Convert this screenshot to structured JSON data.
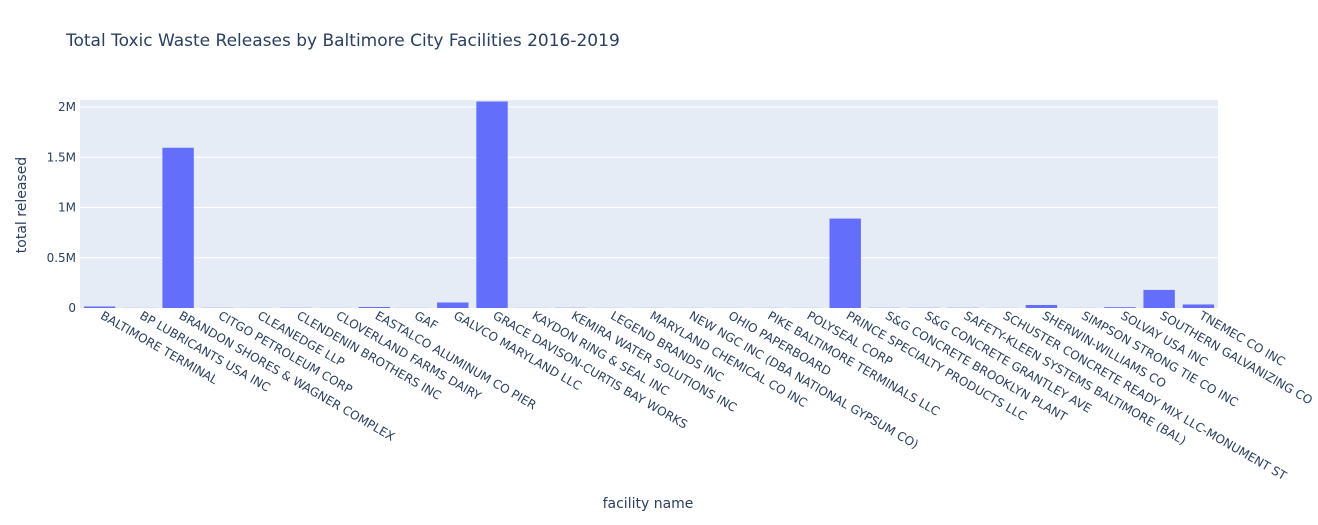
{
  "title": "Total Toxic Waste Releases by Baltimore City Facilities 2016-2019",
  "xlabel": "facility name",
  "ylabel": "total released",
  "colors": {
    "bar": "#636efa",
    "plot_bg": "#e5ecf6",
    "grid": "#ffffff",
    "text": "#2a3f5f"
  },
  "chart_data": {
    "type": "bar",
    "title": "Total Toxic Waste Releases by Baltimore City Facilities 2016-2019",
    "xlabel": "facility name",
    "ylabel": "total released",
    "ylim": [
      0,
      2070000
    ],
    "grid": true,
    "yticks": [
      0,
      500000,
      1000000,
      1500000,
      2000000
    ],
    "ytick_labels": [
      "0",
      "0.5M",
      "1M",
      "1.5M",
      "2M"
    ],
    "categories": [
      "BALTIMORE TERMINAL",
      "BP LUBRICANTS USA INC",
      "BRANDON SHORES & WAGNER COMPLEX",
      "CITGO PETROLEUM CORP",
      "CLEANEDGE LLP",
      "CLENDENIN BROTHERS INC",
      "CLOVERLAND FARMS DAIRY",
      "EASTALCO ALUMINUM CO PIER",
      "GAF",
      "GALVCO MARYLAND LLC",
      "GRACE DAVISON-CURTIS BAY WORKS",
      "KAYDON RING & SEAL INC",
      "KEMIRA WATER SOLUTIONS INC",
      "LEGEND BRANDS INC",
      "MARYLAND CHEMICAL CO INC",
      "NEW NGC INC (DBA NATIONAL GYPSUM CO)",
      "OHIO PAPERBOARD",
      "PIKE BALTIMORE TERMINALS LLC",
      "POLYSEAL CORP",
      "PRINCE SPECIALTY PRODUCTS LLC",
      "S&G CONCRETE BROOKLYN PLANT",
      "S&G CONCRETE GRANTLEY AVE",
      "SAFETY-KLEEN SYSTEMS BALTIMORE (BAL)",
      "SCHUSTER CONCRETE READY MIX LLC-MONUMENT ST",
      "SHERWIN-WILLIAMS CO",
      "SIMPSON STRONG TIE CO INC",
      "SOLVAY USA INC",
      "SOUTHERN GALVANIZING CO",
      "TNEMEC CO INC"
    ],
    "values": [
      15000,
      1000,
      1595000,
      2000,
      1000,
      2000,
      1000,
      10000,
      1000,
      55000,
      2055000,
      1000,
      2000,
      1000,
      1000,
      1000,
      1000,
      1000,
      1000,
      890000,
      2000,
      2000,
      2000,
      1000,
      30000,
      1000,
      8000,
      180000,
      35000
    ]
  }
}
